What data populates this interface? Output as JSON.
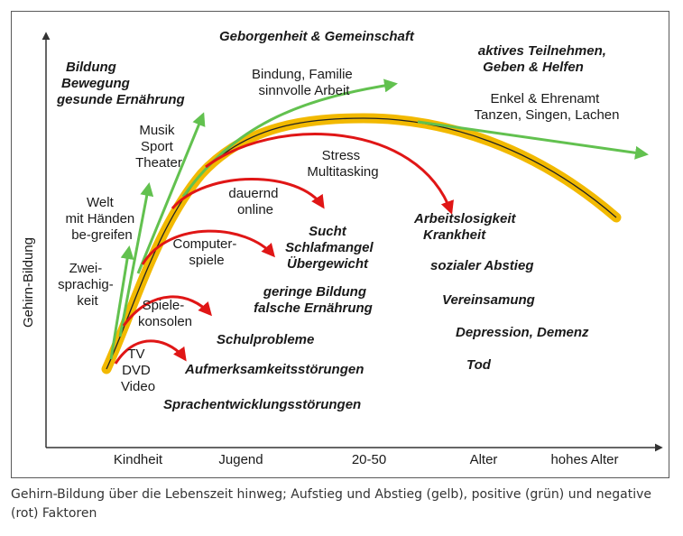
{
  "y_axis_label": "Gehirn-Bildung",
  "x_axis_ticks": [
    "Kindheit",
    "Jugend",
    "20-50",
    "Alter",
    "hohes Alter"
  ],
  "caption": "Gehirn-Bildung über die Lebenszeit hinweg; Aufstieg und Abstieg (gelb), positive (grün) und negative (rot) Faktoren",
  "colors": {
    "main_curve": "#f2b900",
    "positive": "#62c14f",
    "negative": "#e01616",
    "axis": "#333333"
  },
  "positive_factors": [
    {
      "lines": [
        "Zwei-",
        "sprachig-",
        "keit"
      ]
    },
    {
      "lines": [
        "Welt",
        "mit Händen",
        "be-greifen"
      ]
    },
    {
      "lines": [
        "Musik",
        "Sport",
        "Theater"
      ]
    },
    {
      "lines": [
        "Bindung, Familie",
        "sinnvolle Arbeit"
      ]
    },
    {
      "lines": [
        "Enkel & Ehrenamt",
        "Tanzen, Singen, Lachen"
      ]
    }
  ],
  "negative_factors": [
    {
      "lines": [
        "TV",
        "DVD",
        "Video"
      ]
    },
    {
      "lines": [
        "Spiele-",
        "konsolen"
      ]
    },
    {
      "lines": [
        "Computer-",
        "spiele"
      ]
    },
    {
      "lines": [
        "dauernd",
        "online"
      ]
    },
    {
      "lines": [
        "Stress",
        "Multitasking"
      ]
    }
  ],
  "bold_terms": {
    "bildung": [
      "Bildung",
      "Bewegung",
      "gesunde Ernährung"
    ],
    "geborgenheit": "Geborgenheit & Gemeinschaft",
    "teilnehmen": [
      "aktives Teilnehmen,",
      "Geben & Helfen"
    ],
    "sucht": [
      "Sucht",
      "Schlafmangel",
      "Übergewicht"
    ],
    "geringe": [
      "geringe Bildung",
      "falsche Ernährung"
    ],
    "schulprobleme": "Schulprobleme",
    "aufmerksamkeit": "Aufmerksamkeitsstörungen",
    "sprachentwicklung": "Sprachentwicklungsstörungen",
    "arbeitslosigkeit": [
      "Arbeitslosigkeit",
      "Krankheit"
    ],
    "abstieg": "sozialer Abstieg",
    "vereinsamung": "Vereinsamung",
    "depression": "Depression, Demenz",
    "tod": "Tod"
  }
}
